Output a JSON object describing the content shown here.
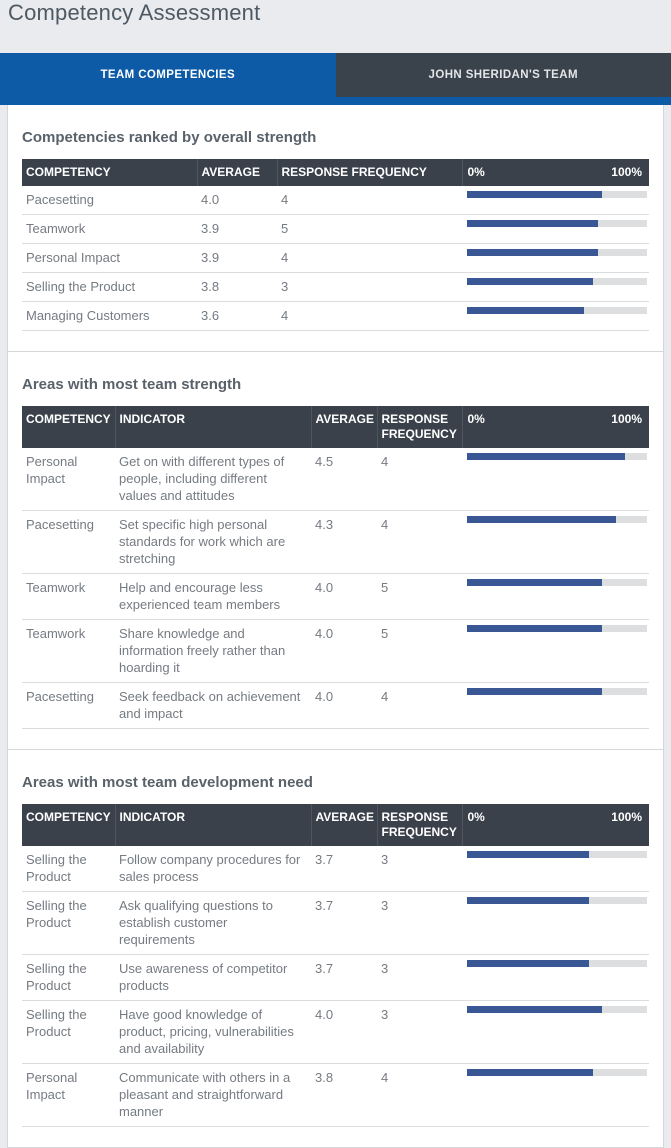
{
  "page": {
    "title": "Competency Assessment"
  },
  "tabs": [
    {
      "label": "TEAM COMPETENCIES",
      "active": true
    },
    {
      "label": "JOHN SHERIDAN'S TEAM",
      "active": false
    }
  ],
  "colors": {
    "accent_blue": "#0d5aa7",
    "tab_inactive": "#3a424c",
    "table_header": "#3a414b",
    "bar_fill": "#3a5795",
    "bar_track": "#dcdedf",
    "page_background": "#e9ebee"
  },
  "sections": [
    {
      "title": "Competencies ranked by overall strength",
      "columns": [
        "COMPETENCY",
        "AVERAGE",
        "RESPONSE FREQUENCY"
      ],
      "bar_scale": {
        "left": "0%",
        "right": "100%"
      },
      "rows": [
        {
          "competency": "Pacesetting",
          "average": "4.0",
          "frequency": "4",
          "bar_percent": 75
        },
        {
          "competency": "Teamwork",
          "average": "3.9",
          "frequency": "5",
          "bar_percent": 72.5
        },
        {
          "competency": "Personal Impact",
          "average": "3.9",
          "frequency": "4",
          "bar_percent": 72.5
        },
        {
          "competency": "Selling the Product",
          "average": "3.8",
          "frequency": "3",
          "bar_percent": 70
        },
        {
          "competency": "Managing Customers",
          "average": "3.6",
          "frequency": "4",
          "bar_percent": 65
        }
      ]
    },
    {
      "title": "Areas with most team strength",
      "columns": [
        "COMPETENCY",
        "INDICATOR",
        "AVERAGE",
        "RESPONSE FREQUENCY"
      ],
      "bar_scale": {
        "left": "0%",
        "right": "100%"
      },
      "rows": [
        {
          "competency": "Personal Impact",
          "indicator": "Get on with different types of people, including different values and attitudes",
          "average": "4.5",
          "frequency": "4",
          "bar_percent": 87.5
        },
        {
          "competency": "Pacesetting",
          "indicator": "Set specific high personal standards for work which are stretching",
          "average": "4.3",
          "frequency": "4",
          "bar_percent": 82.5
        },
        {
          "competency": "Teamwork",
          "indicator": "Help and encourage less experienced team members",
          "average": "4.0",
          "frequency": "5",
          "bar_percent": 75
        },
        {
          "competency": "Teamwork",
          "indicator": "Share knowledge and information freely rather than hoarding it",
          "average": "4.0",
          "frequency": "5",
          "bar_percent": 75
        },
        {
          "competency": "Pacesetting",
          "indicator": "Seek feedback on achievement and impact",
          "average": "4.0",
          "frequency": "4",
          "bar_percent": 75
        }
      ]
    },
    {
      "title": "Areas with most team development need",
      "columns": [
        "COMPETENCY",
        "INDICATOR",
        "AVERAGE",
        "RESPONSE FREQUENCY"
      ],
      "bar_scale": {
        "left": "0%",
        "right": "100%"
      },
      "rows": [
        {
          "competency": "Selling the Product",
          "indicator": "Follow company procedures for sales process",
          "average": "3.7",
          "frequency": "3",
          "bar_percent": 67.5
        },
        {
          "competency": "Selling the Product",
          "indicator": "Ask qualifying questions to establish customer requirements",
          "average": "3.7",
          "frequency": "3",
          "bar_percent": 67.5
        },
        {
          "competency": "Selling the Product",
          "indicator": "Use awareness of competitor products",
          "average": "3.7",
          "frequency": "3",
          "bar_percent": 67.5
        },
        {
          "competency": "Selling the Product",
          "indicator": "Have good knowledge of product, pricing, vulnerabilities and availability",
          "average": "4.0",
          "frequency": "3",
          "bar_percent": 75
        },
        {
          "competency": "Personal Impact",
          "indicator": "Communicate with others in a pleasant and straightforward manner",
          "average": "3.8",
          "frequency": "4",
          "bar_percent": 70
        }
      ]
    }
  ]
}
